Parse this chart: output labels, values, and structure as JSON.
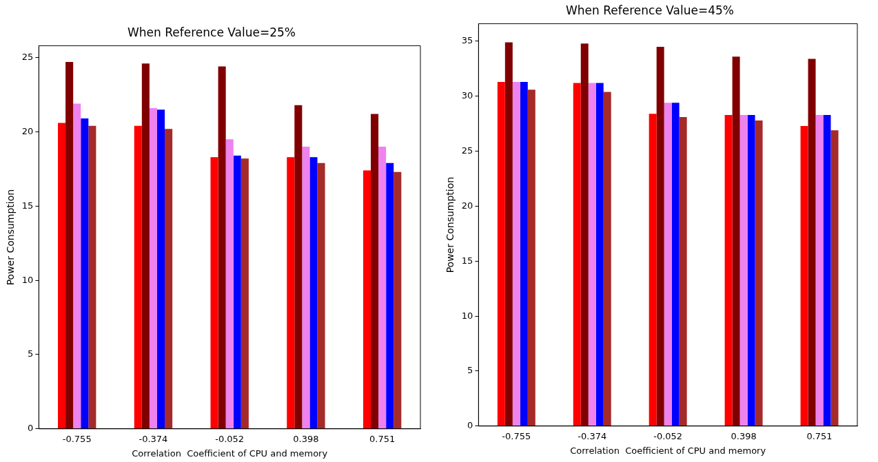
{
  "chart_data": [
    {
      "type": "bar",
      "title": "When Reference Value=25%",
      "xlabel": "Correlation  Coefficient of CPU and memory",
      "ylabel": "Power Consumption",
      "categories": [
        "-0.755",
        "-0.374",
        "-0.052",
        "0.398",
        "0.751"
      ],
      "series": [
        {
          "color": "#ff0000",
          "values": [
            20.6,
            20.4,
            18.3,
            18.3,
            17.4
          ]
        },
        {
          "color": "#800000",
          "values": [
            24.7,
            24.6,
            24.4,
            21.8,
            21.2
          ]
        },
        {
          "color": "#ee82ee",
          "values": [
            21.9,
            21.6,
            19.5,
            19.0,
            19.0
          ]
        },
        {
          "color": "#0000ff",
          "values": [
            20.9,
            21.5,
            18.4,
            18.3,
            17.9
          ]
        },
        {
          "color": "#a52a2a",
          "values": [
            20.4,
            20.2,
            18.2,
            17.9,
            17.3
          ]
        }
      ],
      "ylim": [
        0,
        25.8
      ],
      "yticks": [
        0,
        5,
        10,
        15,
        20,
        25
      ],
      "grid": false,
      "legend": false
    },
    {
      "type": "bar",
      "title": "When Reference Value=45%",
      "xlabel": "Correlation  Coefficient of CPU and memory",
      "ylabel": "Power Consumption",
      "categories": [
        "-0.755",
        "-0.374",
        "-0.052",
        "0.398",
        "0.751"
      ],
      "series": [
        {
          "color": "#ff0000",
          "values": [
            31.3,
            31.2,
            28.4,
            28.3,
            27.3
          ]
        },
        {
          "color": "#800000",
          "values": [
            34.9,
            34.8,
            34.5,
            33.6,
            33.4
          ]
        },
        {
          "color": "#ee82ee",
          "values": [
            31.3,
            31.2,
            29.4,
            28.3,
            28.3
          ]
        },
        {
          "color": "#0000ff",
          "values": [
            31.3,
            31.2,
            29.4,
            28.3,
            28.3
          ]
        },
        {
          "color": "#a52a2a",
          "values": [
            30.6,
            30.4,
            28.1,
            27.8,
            26.9
          ]
        }
      ],
      "ylim": [
        0,
        36.6
      ],
      "yticks": [
        0,
        5,
        10,
        15,
        20,
        25,
        30,
        35
      ],
      "grid": false,
      "legend": false
    }
  ]
}
